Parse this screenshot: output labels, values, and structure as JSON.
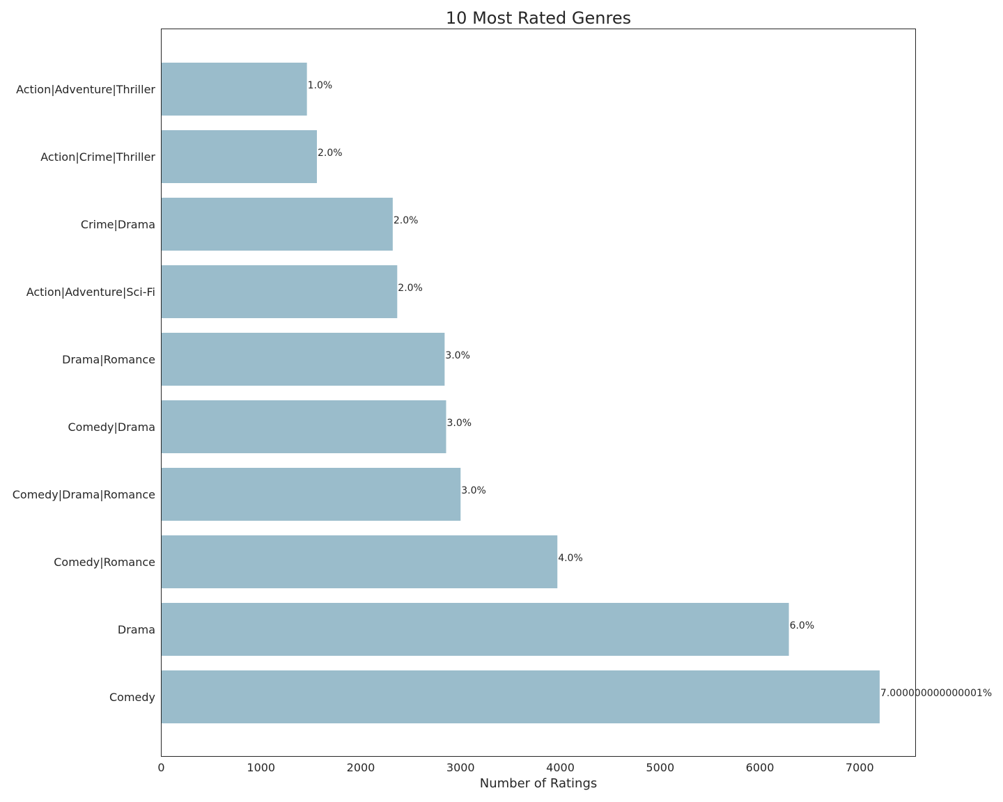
{
  "chart_data": {
    "type": "bar",
    "orientation": "horizontal",
    "title": "10 Most Rated Genres",
    "xlabel": "Number of Ratings",
    "ylabel": "",
    "xlim": [
      0,
      7560
    ],
    "xticks": [
      0,
      1000,
      2000,
      3000,
      4000,
      5000,
      6000,
      7000
    ],
    "grid": false,
    "bar_color": "#9abccb",
    "categories": [
      "Action|Adventure|Thriller",
      "Action|Crime|Thriller",
      "Crime|Drama",
      "Action|Adventure|Sci-Fi",
      "Drama|Romance",
      "Comedy|Drama",
      "Comedy|Drama|Romance",
      "Comedy|Romance",
      "Drama",
      "Comedy"
    ],
    "values": [
      1460,
      1560,
      2320,
      2365,
      2840,
      2855,
      3000,
      3970,
      6290,
      7200
    ],
    "data_labels": [
      "1.0%",
      "2.0%",
      "2.0%",
      "2.0%",
      "3.0%",
      "3.0%",
      "3.0%",
      "4.0%",
      "6.0%",
      "7.000000000000001%"
    ]
  }
}
